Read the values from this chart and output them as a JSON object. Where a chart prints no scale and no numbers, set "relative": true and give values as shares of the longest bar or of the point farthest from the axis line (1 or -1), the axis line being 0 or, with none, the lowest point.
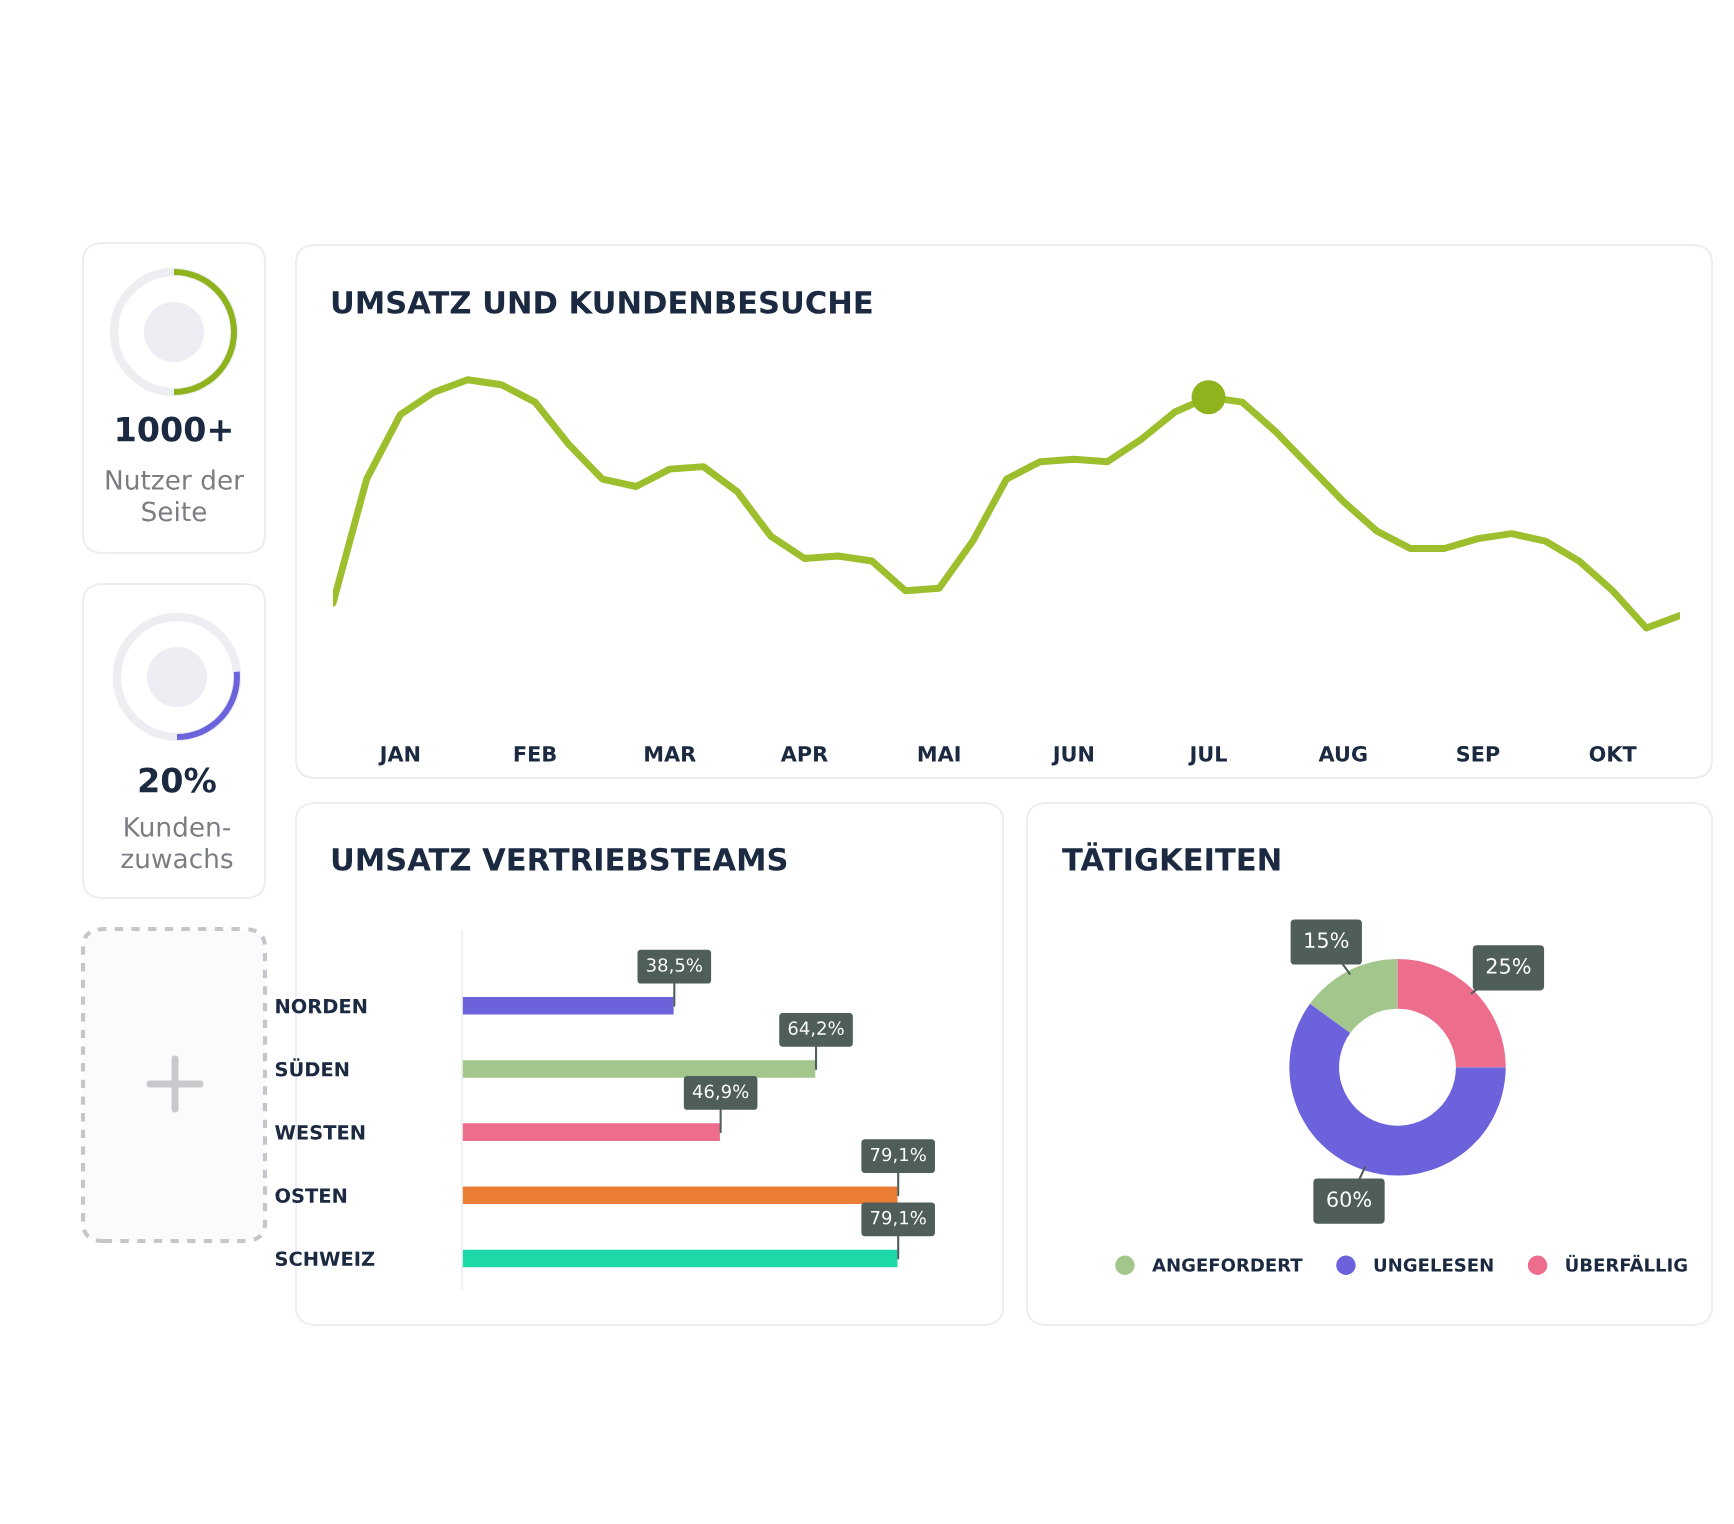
{
  "chart_data": [
    {
      "type": "other",
      "annotations": [
        "1000+",
        "Nutzer der\nSeite",
        "20%",
        "Kunden-\nzuwachs"
      ]
    },
    {
      "type": "line",
      "title": "UMSATZ UND KUNDENBESUCHE",
      "relative": true,
      "categories": [
        null,
        null,
        "JAN",
        null,
        null,
        null,
        "FEB",
        null,
        null,
        null,
        "MAR",
        null,
        null,
        null,
        "APR",
        null,
        null,
        null,
        "MAI",
        null,
        null,
        null,
        "JUN",
        null,
        null,
        null,
        "JUL",
        null,
        null,
        null,
        "AUG",
        null,
        null,
        null,
        "SEP",
        null,
        null,
        null,
        "OKT",
        null,
        null
      ],
      "series": [
        {
          "type": "line",
          "color": "#9dbf2e",
          "values": [
            0.1,
            0.6,
            0.86,
            0.95,
            1.0,
            0.98,
            0.91,
            0.74,
            0.6,
            0.57,
            0.64,
            0.65,
            0.55,
            0.37,
            0.28,
            0.29,
            0.27,
            0.15,
            0.16,
            0.35,
            0.6,
            0.67,
            0.68,
            0.67,
            0.76,
            0.87,
            0.93,
            0.91,
            0.79,
            0.65,
            0.51,
            0.39,
            0.32,
            0.32,
            0.36,
            0.38,
            0.35,
            0.27,
            0.15,
            0.0,
            0.05
          ]
        },
        {
          "type": "scatter",
          "color": "#8fb31d",
          "marker": "circle",
          "values": [
            null,
            null,
            null,
            null,
            null,
            null,
            null,
            null,
            null,
            null,
            null,
            null,
            null,
            null,
            null,
            null,
            null,
            null,
            null,
            null,
            null,
            null,
            null,
            null,
            null,
            null,
            0.93,
            null,
            null,
            null,
            null,
            null,
            null,
            null,
            null,
            null,
            null,
            null,
            null,
            null,
            null
          ]
        }
      ],
      "tick_labels": "x"
    },
    {
      "type": "bar",
      "orientation": "horizontal",
      "title": "UMSATZ VERTRIEBSTEAMS",
      "categories": [
        "NORDEN",
        "SÜDEN",
        "WESTEN",
        "OSTEN",
        "SCHWEIZ"
      ],
      "values": [
        38.5,
        64.2,
        46.9,
        79.1,
        79.1
      ],
      "colors": [
        "#6c63dc",
        "#a3c68c",
        "#ec6d8c",
        "#ec7d35",
        "#1dd9a8"
      ],
      "value_labels": [
        "38,5%",
        "64,2%",
        "46,9%",
        "79,1%",
        "79,1%"
      ],
      "tick_labels": "y"
    },
    {
      "type": "donut",
      "title": "TÄTIGKEITEN",
      "categories": [
        "ANGEFORDERT",
        "UNGELESEN",
        "ÜBERFÄLLIG"
      ],
      "values": [
        15,
        60,
        25
      ],
      "colors": [
        "#a3c68c",
        "#6c63dc",
        "#ec6d8c"
      ],
      "value_labels": [
        "15%",
        "60%",
        "25%"
      ],
      "legend": "bottom"
    }
  ]
}
